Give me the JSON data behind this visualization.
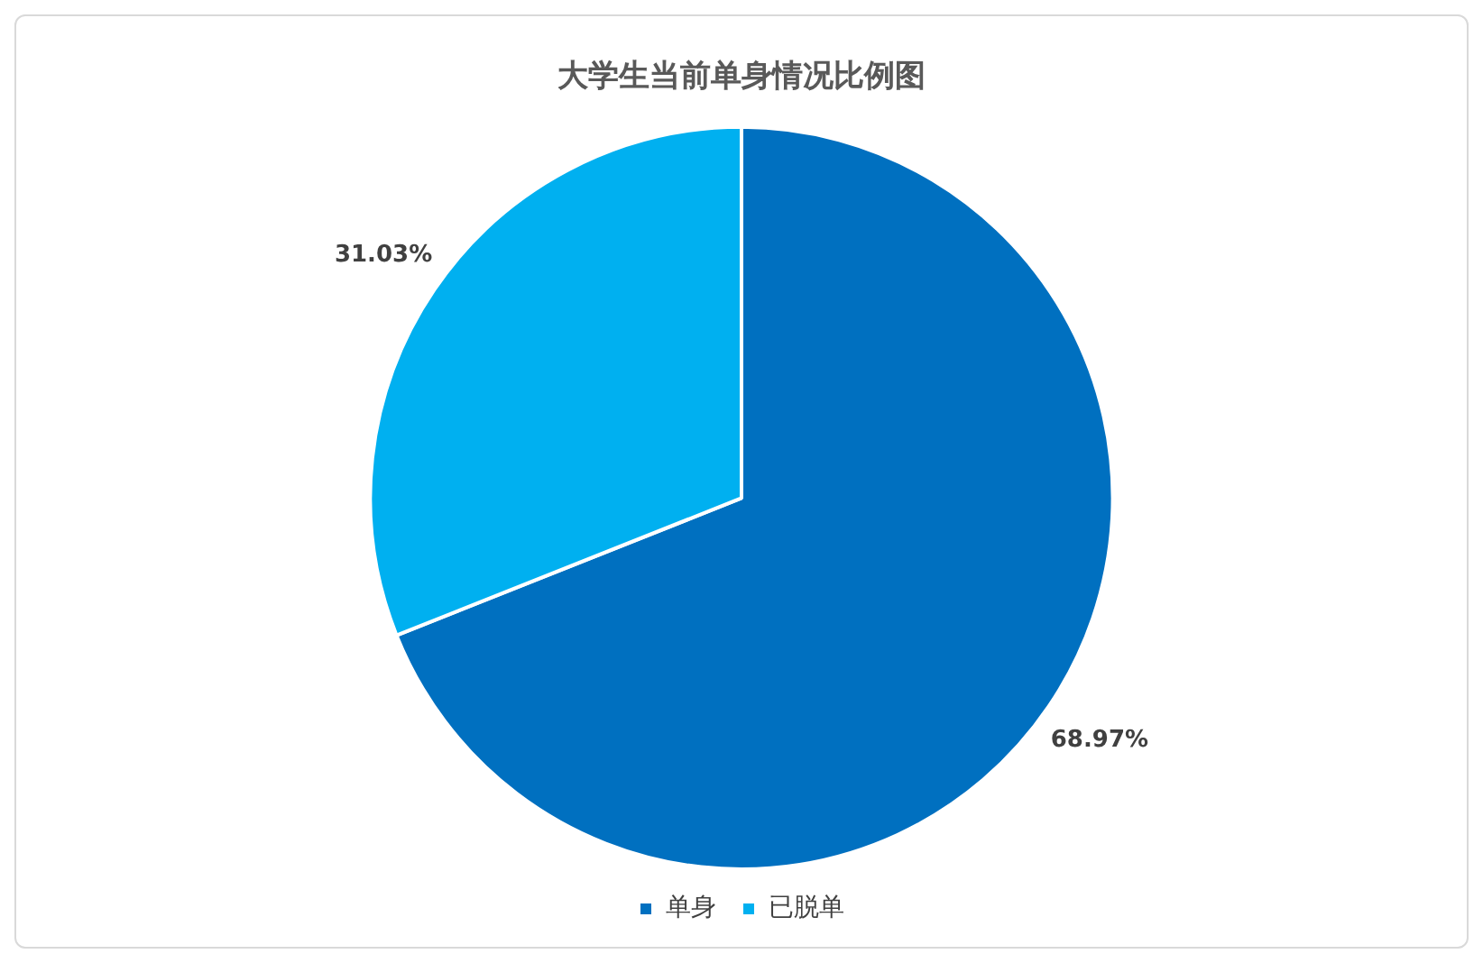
{
  "chart_data": {
    "type": "pie",
    "title": "大学生当前单身情况比例图",
    "categories": [
      "单身",
      "已脱单"
    ],
    "values": [
      68.97,
      31.03
    ],
    "colors": [
      "#0070c0",
      "#00b0f0"
    ],
    "value_labels": [
      "68.97%",
      "31.03%"
    ],
    "legend": "bottom"
  }
}
